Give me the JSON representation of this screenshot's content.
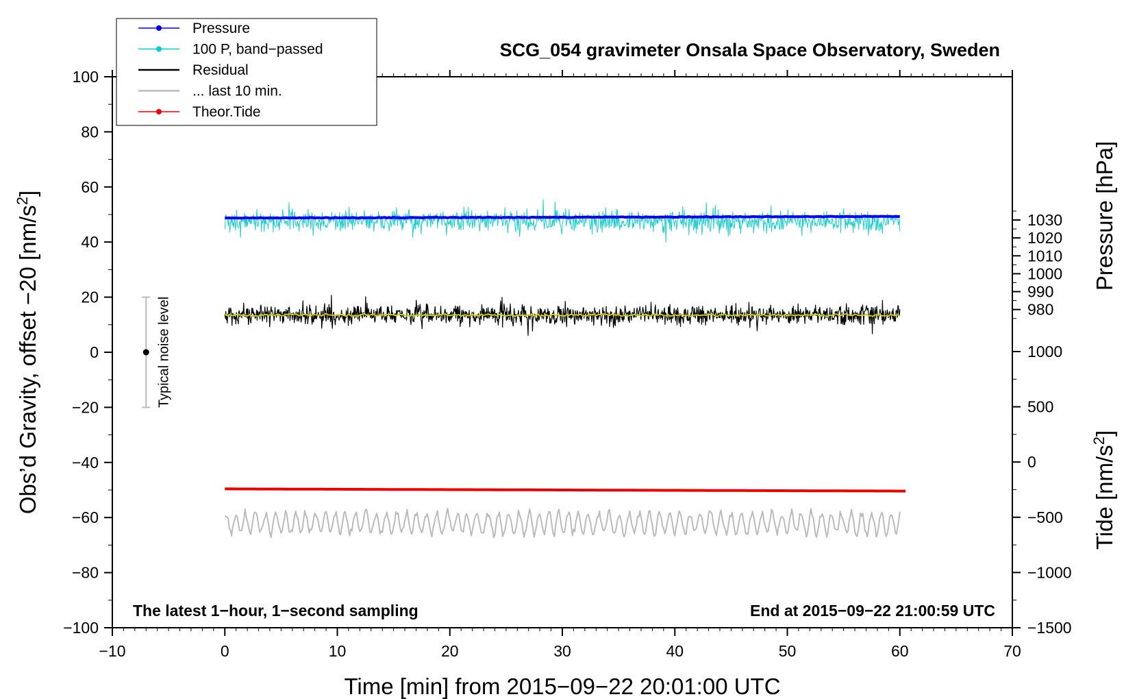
{
  "chart_data": {
    "type": "line",
    "title": "SCG_054 gravimeter Onsala Space Observatory, Sweden",
    "xlabel": "Time [min] from 2015−09−22 20:01:00 UTC",
    "ylabel_left": "Obs’d Gravity, offset −20 [nm/s",
    "ylabel_left_sup": "2",
    "ylabel_left_close": "]",
    "ylabel_right_pressure": "Pressure [hPa]",
    "ylabel_right_tide": "Tide [nm/s",
    "ylabel_right_tide_sup": "2",
    "ylabel_right_tide_close": "]",
    "xlim": [
      -10,
      70
    ],
    "ylim": [
      -100,
      100
    ],
    "x_ticks": [
      -10,
      0,
      10,
      20,
      30,
      40,
      50,
      60,
      70
    ],
    "x_tick_labels": [
      "−10",
      "0",
      "10",
      "20",
      "30",
      "40",
      "50",
      "60",
      "70"
    ],
    "y_ticks": [
      -100,
      -80,
      -60,
      -40,
      -20,
      0,
      20,
      40,
      60,
      80,
      100
    ],
    "y_tick_labels": [
      "−100",
      "−80",
      "−60",
      "−40",
      "−20",
      "0",
      "20",
      "40",
      "60",
      "80",
      "100"
    ],
    "pressure_axis": {
      "ticks": [
        980,
        990,
        1000,
        1010,
        1020,
        1030
      ],
      "tick_labels": [
        "980",
        "990",
        "1000",
        "1010",
        "1020",
        "1030"
      ],
      "ref_value": 980,
      "ref_left_value": 15.5,
      "units_per_left": 0.65
    },
    "tide_axis": {
      "ticks": [
        -1500,
        -1000,
        -500,
        0,
        500,
        1000
      ],
      "tick_labels": [
        "−1500",
        "−1000",
        "−500",
        "0",
        "500",
        "1000"
      ],
      "ref_value": -1500,
      "ref_left_value": -100,
      "units_per_left": 0.0401
    },
    "legend": {
      "position": "top-left",
      "entries": [
        {
          "label": "Pressure",
          "color": "#0000ee",
          "marker": true
        },
        {
          "label": "100 P, band−passed",
          "color": "#00cccc",
          "marker": true
        },
        {
          "label": "Residual",
          "color": "#000000",
          "marker": false
        },
        {
          "label": "... last 10 min.",
          "color": "#bbbbbb",
          "marker": false
        },
        {
          "label": "Theor.Tide",
          "color": "#ee0000",
          "marker": true
        }
      ]
    },
    "series": [
      {
        "name": "Pressure",
        "color": "#0000ee",
        "x_range": [
          0,
          60
        ],
        "start": 48.7,
        "end": 49.3,
        "noise": 0.2
      },
      {
        "name": "100 P, band−passed",
        "color": "#22cccc",
        "x_range": [
          0,
          60
        ],
        "center": 47.5,
        "amplitude": 5.5
      },
      {
        "name": "Residual",
        "color": "#000000",
        "x_range": [
          0,
          60
        ],
        "center": 13.5,
        "amplitude": 4.0
      },
      {
        "name": "Residual (smoothed)",
        "color": "#cccc00",
        "x_range": [
          0,
          60
        ],
        "center": 13.5,
        "amplitude": 0.8
      },
      {
        "name": "Theor.Tide",
        "color": "#ee0000",
        "x_range": [
          0,
          60.5
        ],
        "start": -49.6,
        "end": -50.4
      },
      {
        "name": "... last 10 min.",
        "color": "#bbbbbb",
        "x_range": [
          0,
          60
        ],
        "center": -62,
        "amplitude": 4.5
      }
    ],
    "noise_bar": {
      "x": -7,
      "y": 0,
      "low": -20,
      "high": 20,
      "label": "Typical noise level"
    },
    "annotations": {
      "bottom_left": "The latest 1−hour, 1−second sampling",
      "bottom_right": "End at 2015−09−22 21:00:59 UTC"
    },
    "grid": false
  },
  "colors": {
    "pressure": "#0000ee",
    "bandpassed": "#22cccc",
    "residual": "#000000",
    "smoothed": "#cccc00",
    "last10": "#bbbbbb",
    "tide": "#ee0000",
    "noisebar": "#bbbbbb"
  }
}
